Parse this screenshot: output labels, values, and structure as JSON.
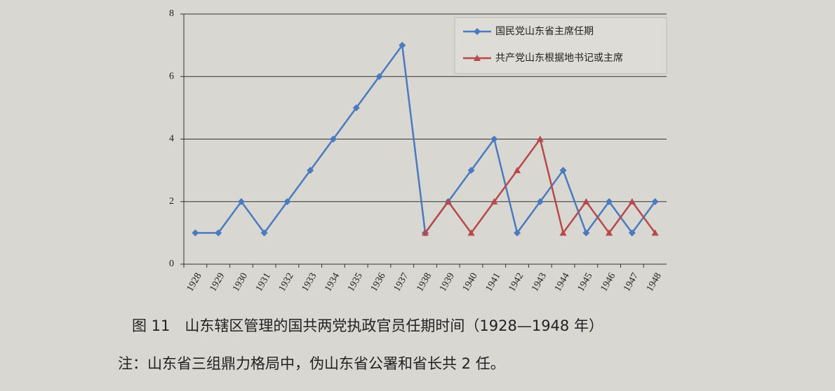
{
  "chart_data": {
    "type": "line",
    "categories": [
      "1928",
      "1929",
      "1930",
      "1931",
      "1932",
      "1933",
      "1934",
      "1935",
      "1936",
      "1937",
      "1938",
      "1939",
      "1940",
      "1941",
      "1942",
      "1943",
      "1944",
      "1945",
      "1946",
      "1947",
      "1948"
    ],
    "series": [
      {
        "name": "国民党山东省主席任期",
        "color": "#4a7ac0",
        "marker": "diamond",
        "values": [
          1,
          1,
          2,
          1,
          2,
          3,
          4,
          5,
          6,
          7,
          1,
          2,
          3,
          4,
          1,
          2,
          3,
          1,
          2,
          1,
          2
        ]
      },
      {
        "name": "共产党山东根据地书记或主席",
        "color": "#b8484a",
        "marker": "triangle",
        "values": [
          null,
          null,
          null,
          null,
          null,
          null,
          null,
          null,
          null,
          null,
          1,
          2,
          1,
          2,
          3,
          4,
          1,
          2,
          1,
          2,
          1
        ]
      }
    ],
    "ylim": [
      0,
      8
    ],
    "yticks": [
      0,
      2,
      4,
      6,
      8
    ],
    "grid": true,
    "legend": "top-right"
  },
  "caption": "图 11　山东辖区管理的国共两党执政官员任期时间（1928—1948 年）",
  "note": "注：山东省三组鼎力格局中，伪山东省公署和省长共 2 任。"
}
